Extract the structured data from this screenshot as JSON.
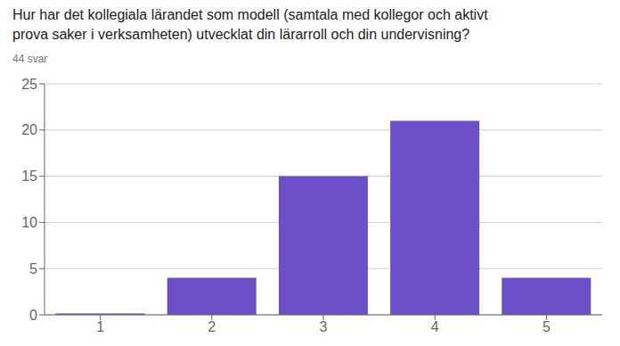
{
  "chart_data": {
    "type": "bar",
    "title": "Hur har det kollegiala lärandet som modell (samtala med kollegor och aktivt\nprova saker i verksamheten) utvecklat din lärarroll och din undervisning?",
    "subtitle": "44 svar",
    "categories": [
      1,
      2,
      3,
      4,
      5
    ],
    "values": [
      0.15,
      4,
      15,
      21,
      4
    ],
    "color": "#6b4fc8",
    "ylim": [
      0,
      25
    ],
    "yticks": [
      0,
      5,
      10,
      15,
      20,
      25
    ],
    "grid": true
  }
}
